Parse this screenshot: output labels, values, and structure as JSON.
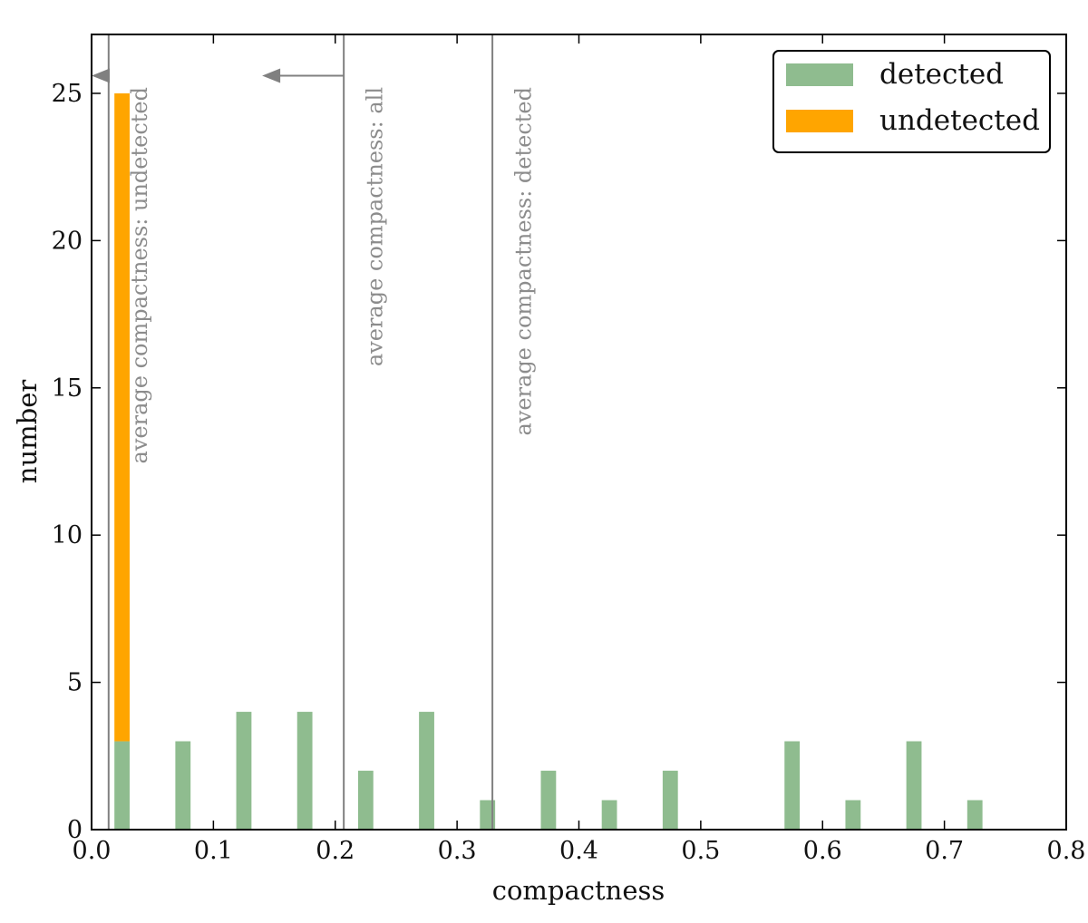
{
  "chart_data": {
    "type": "bar",
    "xlabel": "compactness",
    "ylabel": "number",
    "xlim": [
      0.0,
      0.8
    ],
    "ylim": [
      0,
      27
    ],
    "bin_width": 0.05,
    "bar_width": 0.0125,
    "x_ticks": [
      0.0,
      0.1,
      0.2,
      0.3,
      0.4,
      0.5,
      0.6,
      0.7,
      0.8
    ],
    "x_tick_labels": [
      "0.0",
      "0.1",
      "0.2",
      "0.3",
      "0.4",
      "0.5",
      "0.6",
      "0.7",
      "0.8"
    ],
    "y_ticks": [
      0,
      5,
      10,
      15,
      20,
      25
    ],
    "y_tick_labels": [
      "0",
      "5",
      "10",
      "15",
      "20",
      "25"
    ],
    "grid": false,
    "stacked": true,
    "legend_position": "top-right",
    "bins": [
      0.025,
      0.075,
      0.125,
      0.175,
      0.225,
      0.275,
      0.325,
      0.375,
      0.425,
      0.475,
      0.525,
      0.575,
      0.625,
      0.675,
      0.725
    ],
    "series": [
      {
        "name": "detected",
        "color": "#8fbc8f",
        "values": [
          3,
          3,
          4,
          4,
          2,
          4,
          1,
          2,
          1,
          2,
          0,
          3,
          1,
          3,
          1
        ]
      },
      {
        "name": "undetected",
        "color": "#ffa500",
        "values": [
          22,
          0,
          0,
          0,
          0,
          0,
          0,
          0,
          0,
          0,
          0,
          0,
          0,
          0,
          0
        ]
      }
    ],
    "vertical_lines": [
      {
        "x": 0.014,
        "label": "average compactness: undetected",
        "color": "#808080"
      },
      {
        "x": 0.207,
        "label": "average compactness: all",
        "color": "#808080"
      },
      {
        "x": 0.329,
        "label": "average compactness: detected",
        "color": "#808080"
      }
    ],
    "arrows": [
      {
        "from_x": 0.014,
        "to_x": 0.0,
        "y": 25.6
      },
      {
        "from_x": 0.207,
        "to_x": 0.14,
        "y": 25.6
      }
    ]
  }
}
